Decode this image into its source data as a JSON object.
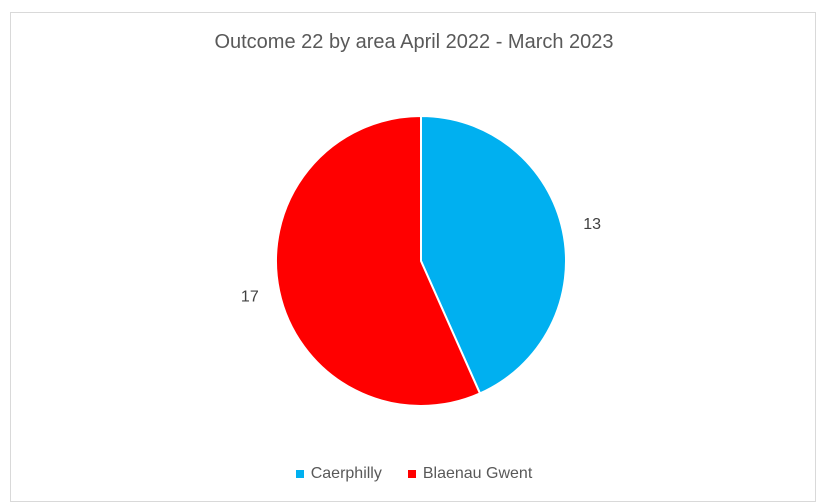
{
  "chart_data": {
    "type": "pie",
    "title": "Outcome 22 by area April 2022 - March 2023",
    "categories": [
      "Caerphilly",
      "Blaenau Gwent"
    ],
    "values": [
      13,
      17
    ],
    "colors": [
      "#00B0F0",
      "#FF0000"
    ],
    "data_labels": [
      "13",
      "17"
    ],
    "legend_position": "bottom",
    "start_angle_deg": 0,
    "direction": "clockwise"
  }
}
